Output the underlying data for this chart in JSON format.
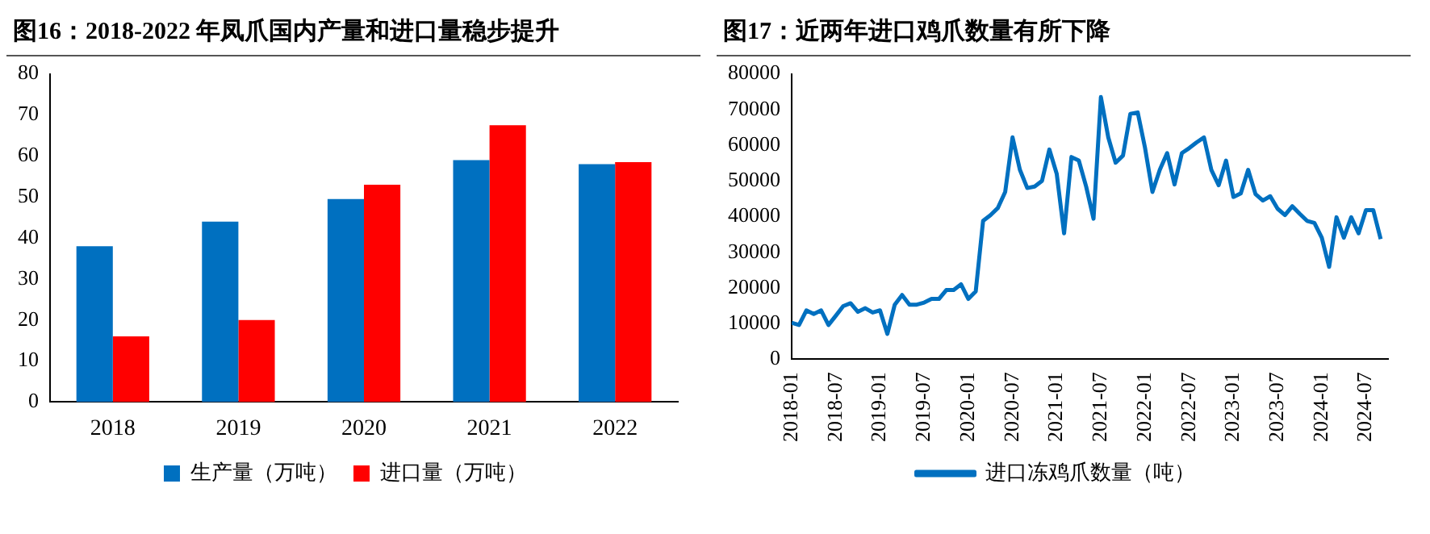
{
  "chart_data": [
    {
      "type": "bar",
      "title": "图16：2018-2022 年凤爪国内产量和进口量稳步提升",
      "categories": [
        "2018",
        "2019",
        "2020",
        "2021",
        "2022"
      ],
      "series": [
        {
          "name": "生产量（万吨）",
          "color": "#0070c0",
          "values": [
            38,
            44,
            49.5,
            59,
            58
          ]
        },
        {
          "name": "进口量（万吨）",
          "color": "#ff0000",
          "values": [
            16,
            20,
            53,
            67.5,
            58.5
          ]
        }
      ],
      "ylim": [
        0,
        80
      ],
      "yticks": [
        0,
        10,
        20,
        30,
        40,
        50,
        60,
        70,
        80
      ],
      "legend": "bottom"
    },
    {
      "type": "line",
      "title": "图17：近两年进口鸡爪数量有所下降",
      "x": [
        "2018-01",
        "2018-02",
        "2018-03",
        "2018-04",
        "2018-05",
        "2018-06",
        "2018-07",
        "2018-08",
        "2018-09",
        "2018-10",
        "2018-11",
        "2018-12",
        "2019-01",
        "2019-02",
        "2019-03",
        "2019-04",
        "2019-05",
        "2019-06",
        "2019-07",
        "2019-08",
        "2019-09",
        "2019-10",
        "2019-11",
        "2019-12",
        "2020-01",
        "2020-02",
        "2020-03",
        "2020-04",
        "2020-05",
        "2020-06",
        "2020-07",
        "2020-08",
        "2020-09",
        "2020-10",
        "2020-11",
        "2020-12",
        "2021-01",
        "2021-02",
        "2021-03",
        "2021-04",
        "2021-05",
        "2021-06",
        "2021-07",
        "2021-08",
        "2021-09",
        "2021-10",
        "2021-11",
        "2021-12",
        "2022-01",
        "2022-02",
        "2022-03",
        "2022-04",
        "2022-05",
        "2022-06",
        "2022-07",
        "2022-08",
        "2022-09",
        "2022-10",
        "2022-11",
        "2022-12",
        "2023-01",
        "2023-02",
        "2023-03",
        "2023-04",
        "2023-05",
        "2023-06",
        "2023-07",
        "2023-08",
        "2023-09",
        "2023-10",
        "2023-11",
        "2023-12",
        "2024-01",
        "2024-02",
        "2024-03",
        "2024-04",
        "2024-05",
        "2024-06",
        "2024-07",
        "2024-08",
        "2024-09"
      ],
      "series": [
        {
          "name": "进口冻鸡爪数量（吨）",
          "color": "#0070c0",
          "values": [
            10200,
            9600,
            13700,
            12700,
            13700,
            9600,
            12200,
            14900,
            15700,
            13300,
            14300,
            13100,
            13700,
            7100,
            15300,
            18000,
            15300,
            15300,
            15900,
            16900,
            16900,
            19400,
            19400,
            21000,
            16900,
            19000,
            38800,
            40400,
            42400,
            46900,
            62200,
            53100,
            48000,
            48400,
            50000,
            58800,
            52000,
            35300,
            56700,
            55700,
            48400,
            39400,
            73500,
            62200,
            55100,
            57100,
            68800,
            69200,
            59200,
            46900,
            53100,
            57800,
            49000,
            57800,
            59200,
            60800,
            62200,
            53100,
            48800,
            55700,
            45500,
            46500,
            53100,
            46300,
            44500,
            45700,
            42200,
            40400,
            42900,
            40800,
            38800,
            38200,
            34100,
            25900,
            39800,
            34100,
            39800,
            35300,
            41800,
            41800,
            33700
          ]
        }
      ],
      "xlim": [
        "2018-01",
        "2024-10"
      ],
      "xticks": [
        "2018-01",
        "2018-07",
        "2019-01",
        "2019-07",
        "2020-01",
        "2020-07",
        "2021-01",
        "2021-07",
        "2022-01",
        "2022-07",
        "2023-01",
        "2023-07",
        "2024-01",
        "2024-07"
      ],
      "ylim": [
        0,
        80000
      ],
      "yticks": [
        0,
        10000,
        20000,
        30000,
        40000,
        50000,
        60000,
        70000,
        80000
      ],
      "legend": "bottom"
    }
  ]
}
